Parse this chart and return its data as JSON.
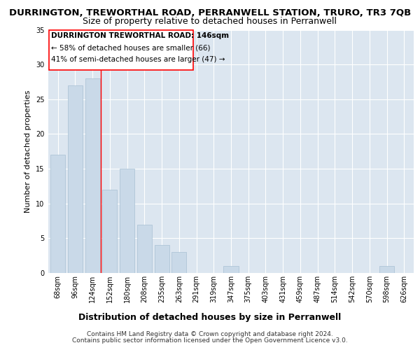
{
  "title1": "DURRINGTON, TREWORTHAL ROAD, PERRANWELL STATION, TRURO, TR3 7QB",
  "title2": "Size of property relative to detached houses in Perranwell",
  "xlabel": "Distribution of detached houses by size in Perranwell",
  "ylabel": "Number of detached properties",
  "categories": [
    "68sqm",
    "96sqm",
    "124sqm",
    "152sqm",
    "180sqm",
    "208sqm",
    "235sqm",
    "263sqm",
    "291sqm",
    "319sqm",
    "347sqm",
    "375sqm",
    "403sqm",
    "431sqm",
    "459sqm",
    "487sqm",
    "514sqm",
    "542sqm",
    "570sqm",
    "598sqm",
    "626sqm"
  ],
  "values": [
    17,
    27,
    28,
    12,
    15,
    7,
    4,
    3,
    0,
    0,
    1,
    0,
    0,
    0,
    0,
    0,
    0,
    0,
    0,
    1,
    0
  ],
  "bar_color": "#c9d9e8",
  "bar_edge_color": "#a8c0d4",
  "ylim": [
    0,
    35
  ],
  "yticks": [
    0,
    5,
    10,
    15,
    20,
    25,
    30,
    35
  ],
  "annotation_title": "DURRINGTON TREWORTHAL ROAD: 146sqm",
  "annotation_line1": "← 58% of detached houses are smaller (66)",
  "annotation_line2": "41% of semi-detached houses are larger (47) →",
  "footer1": "Contains HM Land Registry data © Crown copyright and database right 2024.",
  "footer2": "Contains public sector information licensed under the Open Government Licence v3.0.",
  "plot_bg_color": "#dce6f0",
  "title1_fontsize": 9.5,
  "title2_fontsize": 9,
  "xlabel_fontsize": 9,
  "ylabel_fontsize": 8,
  "tick_fontsize": 7,
  "annotation_fontsize": 7.5,
  "footer_fontsize": 6.5
}
